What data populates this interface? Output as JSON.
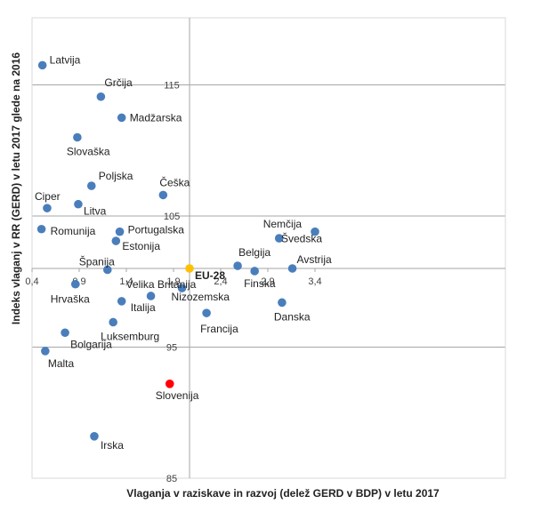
{
  "chart_data": {
    "type": "scatter",
    "xlabel": "Vlaganja v raziskave in razvoj (delež GERD v BDP) v letu 2017",
    "ylabel": "Indeks vlaganj v RR (GERD) v letu 2017 glede na 2016",
    "xlim": [
      0.4,
      3.5
    ],
    "ylim": [
      85,
      121
    ],
    "x_cross": 2.07,
    "y_cross": 101,
    "x_ticks": [
      "0,4",
      "0,9",
      "1,4",
      "1,9",
      "2,4",
      "2,9",
      "3,4"
    ],
    "y_ticks": [
      "85",
      "95",
      "105",
      "115"
    ],
    "grid": true,
    "colors": {
      "default": "#4a7ebb",
      "eu": "#ffc000",
      "highlight": "#ff0000"
    },
    "points": [
      {
        "label": "Latvija",
        "x": 0.51,
        "y": 116.5,
        "color": "default"
      },
      {
        "label": "Grčija",
        "x": 1.13,
        "y": 114.1,
        "color": "default"
      },
      {
        "label": "Madžarska",
        "x": 1.35,
        "y": 112.5,
        "color": "default"
      },
      {
        "label": "Slovaška",
        "x": 0.88,
        "y": 111.0,
        "color": "default"
      },
      {
        "label": "Poljska",
        "x": 1.03,
        "y": 107.3,
        "color": "default"
      },
      {
        "label": "Češka",
        "x": 1.79,
        "y": 106.6,
        "color": "default"
      },
      {
        "label": "Ciper",
        "x": 0.56,
        "y": 105.6,
        "color": "default"
      },
      {
        "label": "Litva",
        "x": 0.89,
        "y": 105.9,
        "color": "default"
      },
      {
        "label": "Romunija",
        "x": 0.5,
        "y": 104.0,
        "color": "default"
      },
      {
        "label": "Portugalska",
        "x": 1.33,
        "y": 103.8,
        "color": "default"
      },
      {
        "label": "Estonija",
        "x": 1.29,
        "y": 103.1,
        "color": "default"
      },
      {
        "label": "Nemčija",
        "x": 3.02,
        "y": 103.3,
        "color": "default"
      },
      {
        "label": "Švedska",
        "x": 3.4,
        "y": 103.8,
        "color": "default"
      },
      {
        "label": "Belgija",
        "x": 2.58,
        "y": 101.2,
        "color": "default"
      },
      {
        "label": "Španija",
        "x": 1.2,
        "y": 100.9,
        "color": "default"
      },
      {
        "label": "EU-28",
        "x": 2.07,
        "y": 101.0,
        "color": "eu"
      },
      {
        "label": "Finska",
        "x": 2.76,
        "y": 100.8,
        "color": "default"
      },
      {
        "label": "Avstrija",
        "x": 3.16,
        "y": 101.0,
        "color": "default"
      },
      {
        "label": "Hrvaška",
        "x": 0.86,
        "y": 99.8,
        "color": "default"
      },
      {
        "label": "Velika Britanija",
        "x": 1.66,
        "y": 98.9,
        "color": "default"
      },
      {
        "label": "Nizozemska",
        "x": 1.99,
        "y": 99.5,
        "color": "default"
      },
      {
        "label": "Italija",
        "x": 1.35,
        "y": 98.5,
        "color": "default"
      },
      {
        "label": "Danska",
        "x": 3.05,
        "y": 98.4,
        "color": "default"
      },
      {
        "label": "Francija",
        "x": 2.25,
        "y": 97.6,
        "color": "default"
      },
      {
        "label": "Luksemburg",
        "x": 1.26,
        "y": 96.9,
        "color": "default"
      },
      {
        "label": "Bolgarija",
        "x": 0.75,
        "y": 96.1,
        "color": "default"
      },
      {
        "label": "Malta",
        "x": 0.54,
        "y": 94.7,
        "color": "default"
      },
      {
        "label": "Slovenija",
        "x": 1.86,
        "y": 92.2,
        "color": "highlight"
      },
      {
        "label": "Irska",
        "x": 1.06,
        "y": 88.2,
        "color": "default"
      }
    ]
  }
}
